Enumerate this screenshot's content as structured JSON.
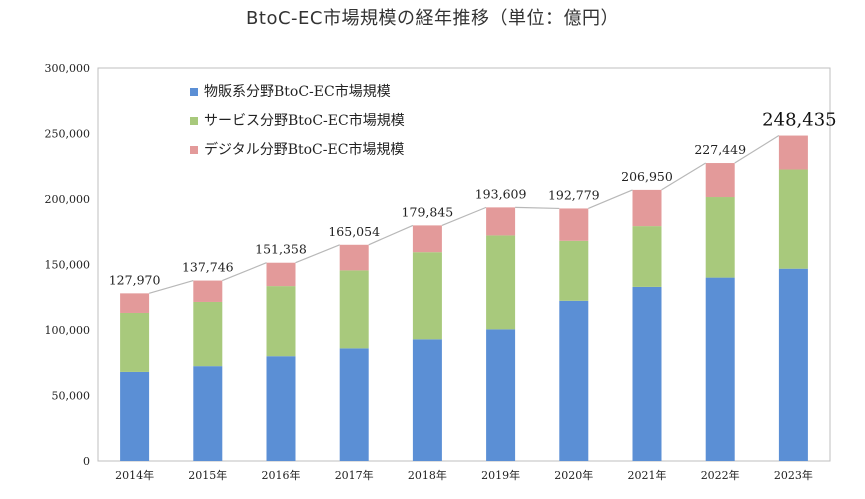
{
  "title": "BtoC-EC市場規模の経年推移（単位：億円）",
  "colors": {
    "goods": "#5b8fd5",
    "services": "#a8c97c",
    "digital": "#e39a9a",
    "trend_line": "#b8b8b8",
    "frame": "#bfbfbf"
  },
  "chart_data": {
    "type": "bar",
    "stacked": true,
    "title": "BtoC-EC市場規模の経年推移（単位：億円）",
    "categories": [
      "2014年",
      "2015年",
      "2016年",
      "2017年",
      "2018年",
      "2019年",
      "2020年",
      "2021年",
      "2022年",
      "2023年"
    ],
    "series": [
      {
        "name": "物販系分野BtoC-EC市場規模",
        "color": "#5b8fd5",
        "values": [
          68000,
          72400,
          80000,
          86000,
          92900,
          100500,
          122300,
          132900,
          140000,
          146800
        ]
      },
      {
        "name": "サービス分野BtoC-EC市場規模",
        "color": "#a8c97c",
        "values": [
          45000,
          49000,
          53500,
          59500,
          66500,
          71700,
          45800,
          46400,
          61500,
          75700
        ]
      },
      {
        "name": "デジタル分野BtoC-EC市場規模",
        "color": "#e39a9a",
        "values": [
          14970,
          16346,
          17858,
          19554,
          20445,
          21409,
          24679,
          27650,
          25949,
          25935
        ]
      }
    ],
    "totals": [
      127970,
      137746,
      151358,
      165054,
      179845,
      193609,
      192779,
      206950,
      227449,
      248435
    ],
    "total_labels": [
      "127,970",
      "137,746",
      "151,358",
      "165,054",
      "179,845",
      "193,609",
      "192,779",
      "206,950",
      "227,449",
      "248,435"
    ],
    "ylim": [
      0,
      300000
    ],
    "yticks": [
      0,
      50000,
      100000,
      150000,
      200000,
      250000,
      300000
    ],
    "ytick_labels": [
      "0",
      "50,000",
      "100,000",
      "150,000",
      "200,000",
      "250,000",
      "300,000"
    ],
    "grid": false,
    "legend_position": "top-left inside plot",
    "xlabel": "",
    "ylabel": ""
  }
}
